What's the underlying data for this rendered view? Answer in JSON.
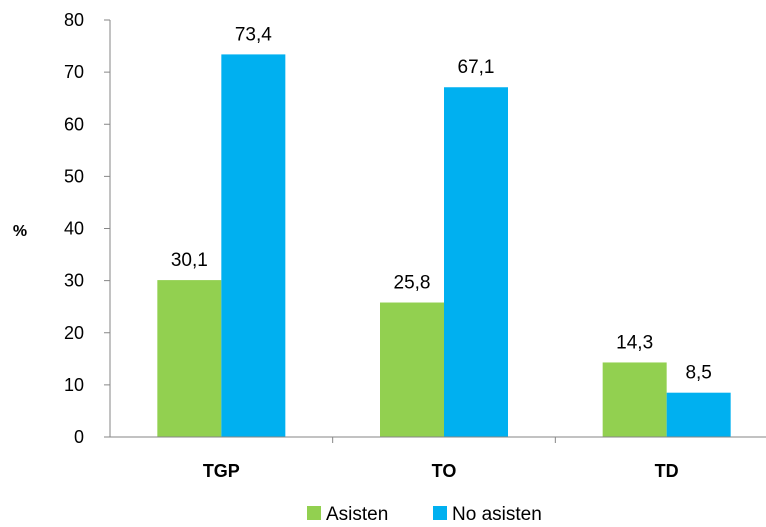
{
  "chart_data": {
    "type": "bar",
    "title": "",
    "xlabel": "",
    "ylabel": "%",
    "ylim": [
      0,
      80
    ],
    "yticks": [
      0,
      10,
      20,
      30,
      40,
      50,
      60,
      70,
      80
    ],
    "categories": [
      "TGP",
      "TO",
      "TD"
    ],
    "series": [
      {
        "name": "Asisten",
        "values": [
          30.1,
          25.8,
          14.3
        ],
        "labels": [
          "30,1",
          "25,8",
          "14,3"
        ],
        "color": "#92d050"
      },
      {
        "name": "No asisten",
        "values": [
          73.4,
          67.1,
          8.5
        ],
        "labels": [
          "73,4",
          "67,1",
          "8,5"
        ],
        "color": "#00b0f0"
      }
    ],
    "grid": false,
    "legend_position": "bottom-center",
    "data_labels": true
  }
}
